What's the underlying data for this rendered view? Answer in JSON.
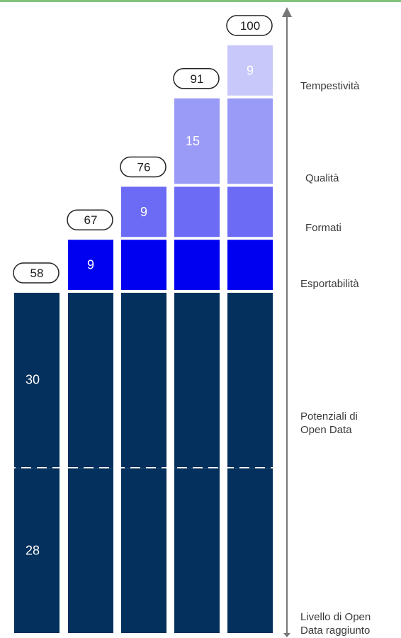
{
  "chart_data": {
    "type": "bar",
    "stacked": true,
    "categories": [
      "",
      "",
      "",
      "",
      ""
    ],
    "segments": [
      {
        "name": "Livello di Open Data raggiunto",
        "values": [
          28,
          28,
          28,
          28,
          28
        ],
        "color": "#03305c",
        "label_color": "#ffffff",
        "label_values": [
          "28",
          "",
          "",
          "",
          ""
        ]
      },
      {
        "name": "Potenziali di Open Data",
        "values": [
          30,
          30,
          30,
          30,
          30
        ],
        "color": "#03305c",
        "label_color": "#ffffff",
        "label_values": [
          "30",
          "",
          "",
          "",
          ""
        ]
      },
      {
        "name": "Esportabilità",
        "values": [
          0,
          9,
          9,
          9,
          9
        ],
        "color": "#0000f0",
        "label_color": "#ffffff",
        "label_values": [
          "",
          "9",
          "",
          "",
          ""
        ]
      },
      {
        "name": "Formati",
        "values": [
          0,
          0,
          9,
          9,
          9
        ],
        "color": "#6b6bf5",
        "label_color": "#ffffff",
        "label_values": [
          "",
          "",
          "9",
          "",
          ""
        ]
      },
      {
        "name": "Qualità",
        "values": [
          0,
          0,
          0,
          15,
          15
        ],
        "color": "#9a9af7",
        "label_color": "#ffffff",
        "label_values": [
          "",
          "",
          "",
          "15",
          ""
        ]
      },
      {
        "name": "Tempestività",
        "values": [
          0,
          0,
          0,
          0,
          9
        ],
        "color": "#c8c8fa",
        "label_color": "#ffffff",
        "label_values": [
          "",
          "",
          "",
          "",
          "9"
        ]
      }
    ],
    "totals": [
      "58",
      "67",
      "76",
      "91",
      "100"
    ],
    "axis_labels": [
      {
        "text": "Tempestività",
        "level": 100
      },
      {
        "text": "Qualità",
        "level": 89
      },
      {
        "text": "Formati",
        "level": 79
      },
      {
        "text": "Esportabilità",
        "level": 68
      },
      {
        "text": "Potenziali di\nOpen Data",
        "level": 40
      },
      {
        "text": "Livello di Open\nData raggiunto",
        "level": 0
      }
    ],
    "ylim": [
      0,
      100
    ],
    "grid": false,
    "divider": {
      "value": 28,
      "style": "dashed"
    },
    "axis_color": "#777777"
  }
}
